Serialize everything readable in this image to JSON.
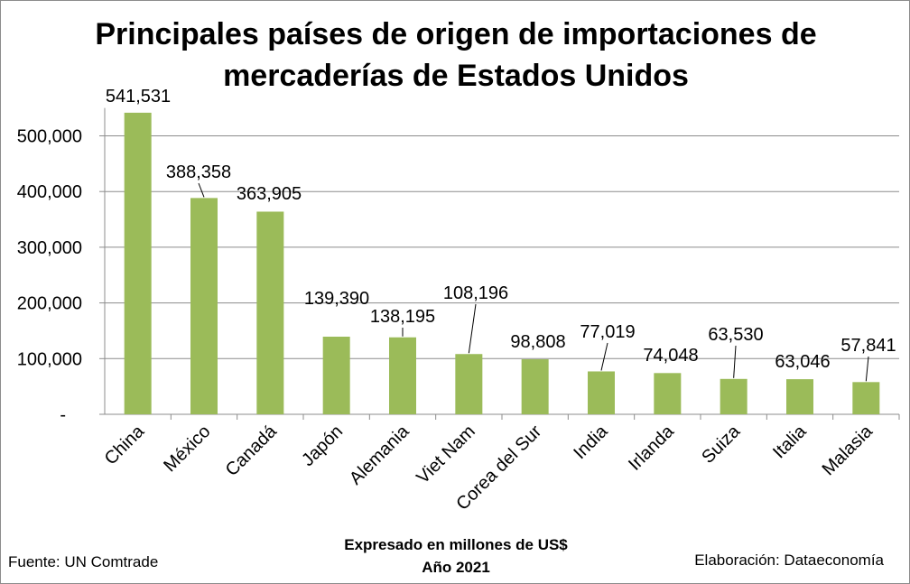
{
  "chart_data": {
    "type": "bar",
    "title_lines": [
      "Principales países de origen de importaciones de",
      "mercaderías de Estados Unidos"
    ],
    "categories": [
      "China",
      "México",
      "Canadá",
      "Japón",
      "Alemania",
      "Viet Nam",
      "Corea del Sur",
      "India",
      "Irlanda",
      "Suiza",
      "Italia",
      "Malasia"
    ],
    "values": [
      541531,
      388358,
      363905,
      139390,
      138195,
      108196,
      98808,
      77019,
      74048,
      63530,
      63046,
      57841
    ],
    "value_labels": [
      "541,531",
      "388,358",
      "363,905",
      "139,390",
      "138,195",
      "108,196",
      "98,808",
      "77,019",
      "74,048",
      "63,530",
      "63,046",
      "57,841"
    ],
    "y_ticks": [
      0,
      100000,
      200000,
      300000,
      400000,
      500000
    ],
    "y_tick_labels": [
      "-",
      "100,000",
      "200,000",
      "300,000",
      "400,000",
      "500,000"
    ],
    "ylim": [
      0,
      550000
    ],
    "grid": true,
    "bar_color": "#9bbb59",
    "subtitle_lines": [
      "Expresado en millones de US$",
      "Año 2021"
    ]
  },
  "footer": {
    "source": "Fuente: UN Comtrade",
    "credit": "Elaboración: Dataeconomía"
  }
}
